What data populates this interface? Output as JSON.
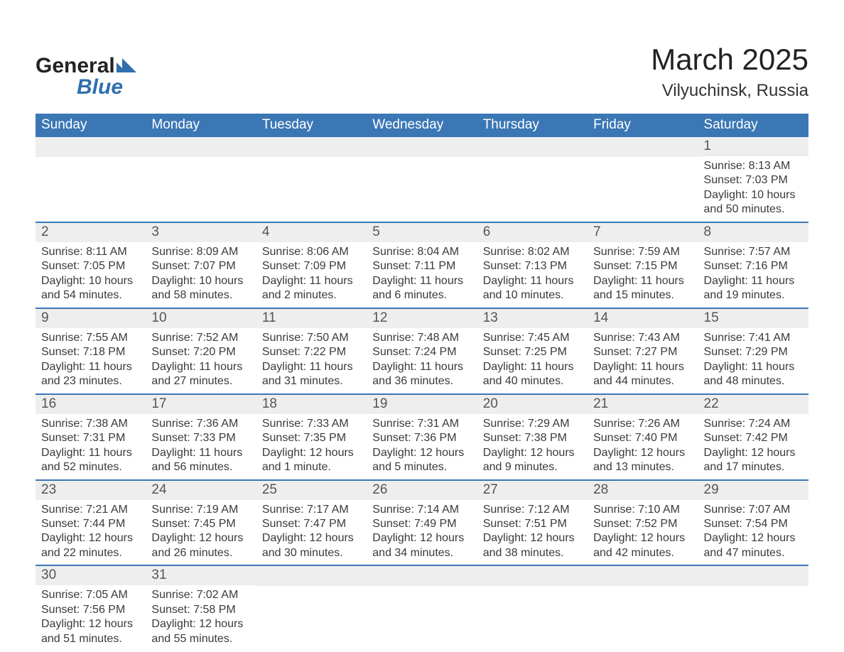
{
  "brand": {
    "name_a": "General",
    "name_b": "Blue"
  },
  "title": "March 2025",
  "location": "Vilyuchinsk, Russia",
  "colors": {
    "header_bg": "#3b77b5",
    "header_text": "#ffffff",
    "daynum_bg": "#eeeeee",
    "border": "#3b77b5",
    "text": "#333333",
    "brand_blue": "#2f6fae"
  },
  "weekdays": [
    "Sunday",
    "Monday",
    "Tuesday",
    "Wednesday",
    "Thursday",
    "Friday",
    "Saturday"
  ],
  "weeks": [
    [
      null,
      null,
      null,
      null,
      null,
      null,
      {
        "n": "1",
        "sunrise": "Sunrise: 8:13 AM",
        "sunset": "Sunset: 7:03 PM",
        "daylight": "Daylight: 10 hours and 50 minutes."
      }
    ],
    [
      {
        "n": "2",
        "sunrise": "Sunrise: 8:11 AM",
        "sunset": "Sunset: 7:05 PM",
        "daylight": "Daylight: 10 hours and 54 minutes."
      },
      {
        "n": "3",
        "sunrise": "Sunrise: 8:09 AM",
        "sunset": "Sunset: 7:07 PM",
        "daylight": "Daylight: 10 hours and 58 minutes."
      },
      {
        "n": "4",
        "sunrise": "Sunrise: 8:06 AM",
        "sunset": "Sunset: 7:09 PM",
        "daylight": "Daylight: 11 hours and 2 minutes."
      },
      {
        "n": "5",
        "sunrise": "Sunrise: 8:04 AM",
        "sunset": "Sunset: 7:11 PM",
        "daylight": "Daylight: 11 hours and 6 minutes."
      },
      {
        "n": "6",
        "sunrise": "Sunrise: 8:02 AM",
        "sunset": "Sunset: 7:13 PM",
        "daylight": "Daylight: 11 hours and 10 minutes."
      },
      {
        "n": "7",
        "sunrise": "Sunrise: 7:59 AM",
        "sunset": "Sunset: 7:15 PM",
        "daylight": "Daylight: 11 hours and 15 minutes."
      },
      {
        "n": "8",
        "sunrise": "Sunrise: 7:57 AM",
        "sunset": "Sunset: 7:16 PM",
        "daylight": "Daylight: 11 hours and 19 minutes."
      }
    ],
    [
      {
        "n": "9",
        "sunrise": "Sunrise: 7:55 AM",
        "sunset": "Sunset: 7:18 PM",
        "daylight": "Daylight: 11 hours and 23 minutes."
      },
      {
        "n": "10",
        "sunrise": "Sunrise: 7:52 AM",
        "sunset": "Sunset: 7:20 PM",
        "daylight": "Daylight: 11 hours and 27 minutes."
      },
      {
        "n": "11",
        "sunrise": "Sunrise: 7:50 AM",
        "sunset": "Sunset: 7:22 PM",
        "daylight": "Daylight: 11 hours and 31 minutes."
      },
      {
        "n": "12",
        "sunrise": "Sunrise: 7:48 AM",
        "sunset": "Sunset: 7:24 PM",
        "daylight": "Daylight: 11 hours and 36 minutes."
      },
      {
        "n": "13",
        "sunrise": "Sunrise: 7:45 AM",
        "sunset": "Sunset: 7:25 PM",
        "daylight": "Daylight: 11 hours and 40 minutes."
      },
      {
        "n": "14",
        "sunrise": "Sunrise: 7:43 AM",
        "sunset": "Sunset: 7:27 PM",
        "daylight": "Daylight: 11 hours and 44 minutes."
      },
      {
        "n": "15",
        "sunrise": "Sunrise: 7:41 AM",
        "sunset": "Sunset: 7:29 PM",
        "daylight": "Daylight: 11 hours and 48 minutes."
      }
    ],
    [
      {
        "n": "16",
        "sunrise": "Sunrise: 7:38 AM",
        "sunset": "Sunset: 7:31 PM",
        "daylight": "Daylight: 11 hours and 52 minutes."
      },
      {
        "n": "17",
        "sunrise": "Sunrise: 7:36 AM",
        "sunset": "Sunset: 7:33 PM",
        "daylight": "Daylight: 11 hours and 56 minutes."
      },
      {
        "n": "18",
        "sunrise": "Sunrise: 7:33 AM",
        "sunset": "Sunset: 7:35 PM",
        "daylight": "Daylight: 12 hours and 1 minute."
      },
      {
        "n": "19",
        "sunrise": "Sunrise: 7:31 AM",
        "sunset": "Sunset: 7:36 PM",
        "daylight": "Daylight: 12 hours and 5 minutes."
      },
      {
        "n": "20",
        "sunrise": "Sunrise: 7:29 AM",
        "sunset": "Sunset: 7:38 PM",
        "daylight": "Daylight: 12 hours and 9 minutes."
      },
      {
        "n": "21",
        "sunrise": "Sunrise: 7:26 AM",
        "sunset": "Sunset: 7:40 PM",
        "daylight": "Daylight: 12 hours and 13 minutes."
      },
      {
        "n": "22",
        "sunrise": "Sunrise: 7:24 AM",
        "sunset": "Sunset: 7:42 PM",
        "daylight": "Daylight: 12 hours and 17 minutes."
      }
    ],
    [
      {
        "n": "23",
        "sunrise": "Sunrise: 7:21 AM",
        "sunset": "Sunset: 7:44 PM",
        "daylight": "Daylight: 12 hours and 22 minutes."
      },
      {
        "n": "24",
        "sunrise": "Sunrise: 7:19 AM",
        "sunset": "Sunset: 7:45 PM",
        "daylight": "Daylight: 12 hours and 26 minutes."
      },
      {
        "n": "25",
        "sunrise": "Sunrise: 7:17 AM",
        "sunset": "Sunset: 7:47 PM",
        "daylight": "Daylight: 12 hours and 30 minutes."
      },
      {
        "n": "26",
        "sunrise": "Sunrise: 7:14 AM",
        "sunset": "Sunset: 7:49 PM",
        "daylight": "Daylight: 12 hours and 34 minutes."
      },
      {
        "n": "27",
        "sunrise": "Sunrise: 7:12 AM",
        "sunset": "Sunset: 7:51 PM",
        "daylight": "Daylight: 12 hours and 38 minutes."
      },
      {
        "n": "28",
        "sunrise": "Sunrise: 7:10 AM",
        "sunset": "Sunset: 7:52 PM",
        "daylight": "Daylight: 12 hours and 42 minutes."
      },
      {
        "n": "29",
        "sunrise": "Sunrise: 7:07 AM",
        "sunset": "Sunset: 7:54 PM",
        "daylight": "Daylight: 12 hours and 47 minutes."
      }
    ],
    [
      {
        "n": "30",
        "sunrise": "Sunrise: 7:05 AM",
        "sunset": "Sunset: 7:56 PM",
        "daylight": "Daylight: 12 hours and 51 minutes."
      },
      {
        "n": "31",
        "sunrise": "Sunrise: 7:02 AM",
        "sunset": "Sunset: 7:58 PM",
        "daylight": "Daylight: 12 hours and 55 minutes."
      },
      null,
      null,
      null,
      null,
      null
    ]
  ]
}
